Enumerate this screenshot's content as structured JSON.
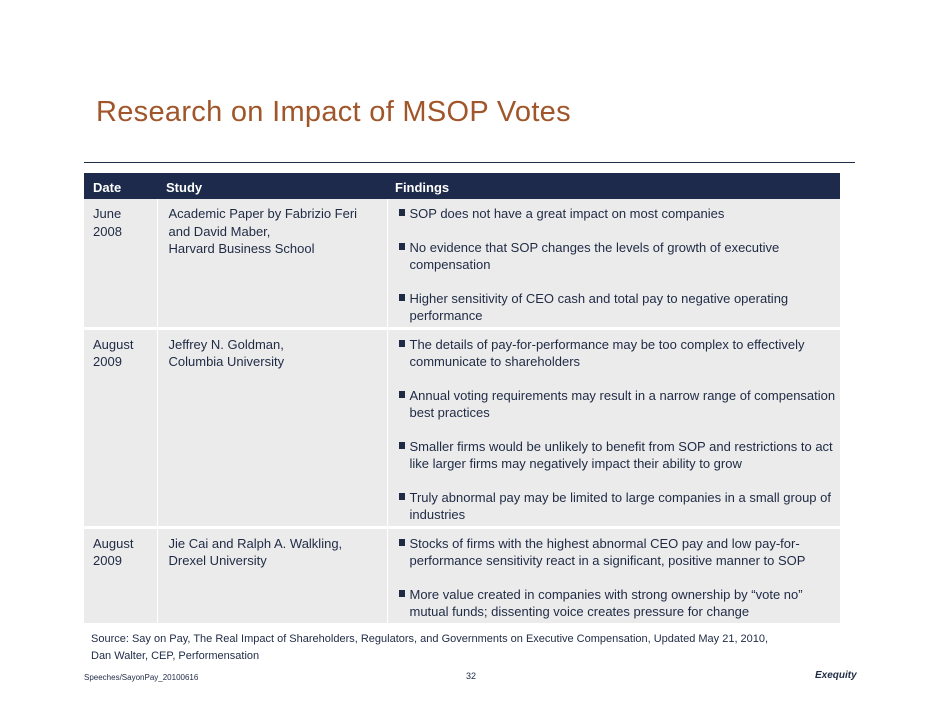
{
  "slide": {
    "title": "Research on Impact of MSOP Votes"
  },
  "table": {
    "headers": [
      "Date",
      "Study",
      "Findings"
    ],
    "rows": [
      {
        "date": [
          "June",
          "2008"
        ],
        "study": [
          "Academic Paper by Fabrizio Feri",
          "and David Maber,",
          "Harvard Business School"
        ],
        "findings": [
          "SOP does not have a great impact on most companies",
          "No evidence that SOP changes the levels of growth of executive compensation",
          "Higher sensitivity of CEO cash and total pay to negative operating performance"
        ]
      },
      {
        "date": [
          "August",
          "2009"
        ],
        "study": [
          "Jeffrey N. Goldman,",
          "Columbia University"
        ],
        "findings": [
          "The details of pay-for-performance may be too complex to effectively communicate to shareholders",
          "Annual voting requirements may result in a narrow range of compensation best practices",
          "Smaller firms would be unlikely to benefit from SOP and restrictions to act like larger firms may negatively impact their ability to grow",
          "Truly abnormal pay may be limited to large companies in a small group of industries"
        ]
      },
      {
        "date": [
          "August",
          "2009"
        ],
        "study": [
          "Jie Cai and Ralph A. Walkling,",
          "Drexel University"
        ],
        "findings": [
          "Stocks of firms with the highest abnormal CEO pay and low pay-for-performance sensitivity react in a significant, positive manner to SOP",
          "More value created in companies with strong ownership by “vote no” mutual funds; dissenting voice creates pressure for change"
        ]
      }
    ]
  },
  "source": {
    "line1": "Source: Say on Pay, The Real Impact of Shareholders, Regulators, and Governments on Executive Compensation, Updated May 21, 2010,",
    "line2": "Dan Walter, CEP, Performensation"
  },
  "footer": {
    "file": "Speeches/SayonPay_20100616",
    "page": "32",
    "brand": "Exequity"
  }
}
